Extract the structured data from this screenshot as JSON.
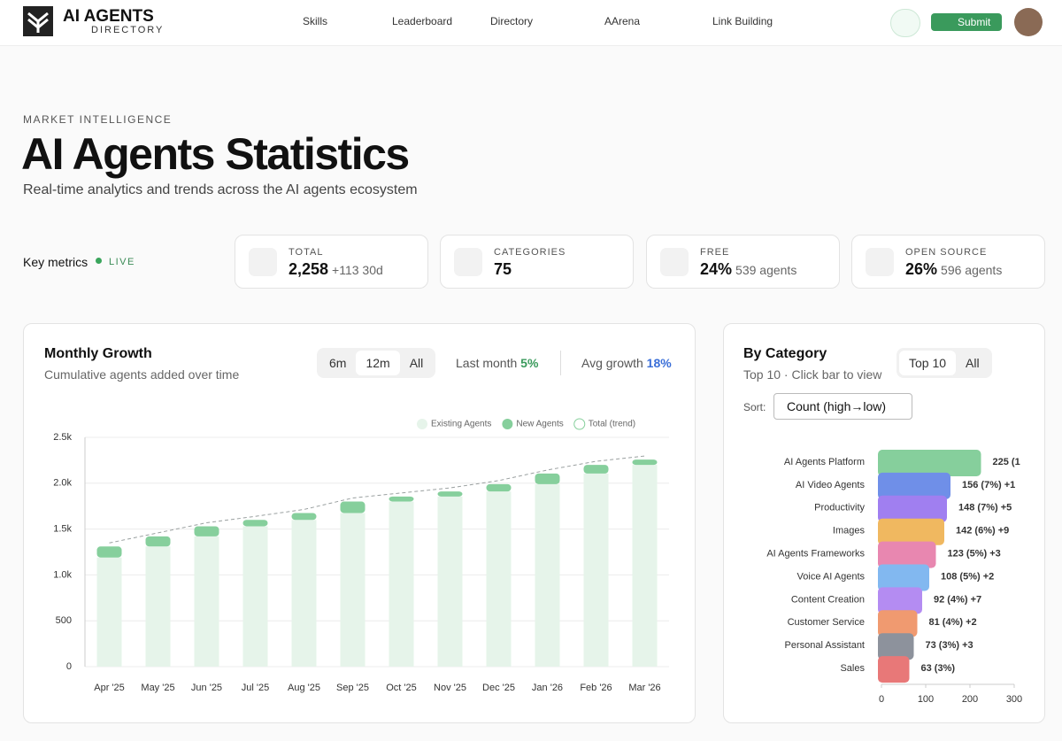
{
  "header": {
    "logo_top": "AI AGENTS",
    "logo_bottom": "DIRECTORY",
    "nav": [
      "Skills",
      "Leaderboard",
      "Directory",
      "AArena",
      "Link Building"
    ],
    "submit": "Submit"
  },
  "hero": {
    "eyebrow": "MARKET INTELLIGENCE",
    "title": "AI Agents Statistics",
    "subtitle": "Real-time analytics and trends across the AI agents ecosystem"
  },
  "metrics": {
    "label": "Key metrics",
    "live": "LIVE",
    "cards": [
      {
        "label": "TOTAL",
        "value": "2,258",
        "extra": "+113 30d"
      },
      {
        "label": "CATEGORIES",
        "value": "75",
        "extra": ""
      },
      {
        "label": "FREE",
        "value": "24%",
        "extra": "539 agents"
      },
      {
        "label": "OPEN SOURCE",
        "value": "26%",
        "extra": "596 agents"
      }
    ]
  },
  "growth": {
    "title": "Monthly Growth",
    "subtitle": "Cumulative agents added over time",
    "ranges": [
      "6m",
      "12m",
      "All"
    ],
    "last_month_label": "Last month",
    "last_month": "5%",
    "avg_label": "Avg growth",
    "avg": "18%"
  },
  "category": {
    "title": "By Category",
    "subtitle": "Top 10 · Click bar to view",
    "tabs": [
      "Top 10",
      "All"
    ],
    "sort_label": "Sort:",
    "sort": "Count (high→low)"
  },
  "chart_data": [
    {
      "type": "stacked_bar",
      "categories": [
        "Apr '25",
        "May '25",
        "Jun '25",
        "Jul '25",
        "Aug '25",
        "Sep '25",
        "Oct '25",
        "Nov '25",
        "Dec '25",
        "Jan '26",
        "Feb '26",
        "Mar '26"
      ],
      "series": [
        {
          "name": "Existing Agents",
          "color": "#e6f4ea",
          "values": [
            1190,
            1310,
            1420,
            1530,
            1600,
            1675,
            1800,
            1855,
            1910,
            1990,
            2105,
            2200
          ]
        },
        {
          "name": "New Agents",
          "color": "#86cf9c",
          "values": [
            120,
            110,
            110,
            70,
            75,
            125,
            55,
            55,
            80,
            115,
            95,
            58
          ]
        },
        {
          "name": "Total (trend)",
          "color": "#9aa0a0",
          "type": "line",
          "values": [
            1310,
            1420,
            1530,
            1600,
            1675,
            1800,
            1855,
            1910,
            1990,
            2105,
            2200,
            2258
          ]
        }
      ],
      "ylim": [
        0,
        2500
      ],
      "yticks": [
        0,
        500,
        {
          "value": 1000,
          "label": "1.0k"
        },
        {
          "value": 1500,
          "label": "1.5k"
        },
        {
          "value": 2000,
          "label": "2.0k"
        },
        {
          "value": 2500,
          "label": "2.5k"
        }
      ],
      "grid": true,
      "legend": "top-right"
    },
    {
      "type": "hbar",
      "categories": [
        "AI Agents Platform",
        "AI Video Agents",
        "Productivity",
        "Images",
        "AI Agents Frameworks",
        "Voice AI Agents",
        "Content Creation",
        "Customer Service",
        "Personal Assistant",
        "Sales"
      ],
      "values": [
        225,
        156,
        148,
        142,
        123,
        108,
        92,
        81,
        73,
        63
      ],
      "value_labels": [
        "225 (1",
        "156 (7%) +1",
        "148 (7%) +5",
        "142 (6%) +9",
        "123 (5%) +3",
        "108 (5%) +2",
        "92 (4%) +7",
        "81 (4%) +2",
        "73 (3%) +3",
        "63 (3%)"
      ],
      "colors": [
        "#86cf9c",
        "#6f8fe8",
        "#a07ff0",
        "#f0b860",
        "#e887b0",
        "#82b8f0",
        "#b48cf2",
        "#f09a70",
        "#8d929c",
        "#e87878"
      ],
      "xlim": [
        0,
        300
      ],
      "xticks": [
        0,
        100,
        200,
        300
      ]
    }
  ]
}
